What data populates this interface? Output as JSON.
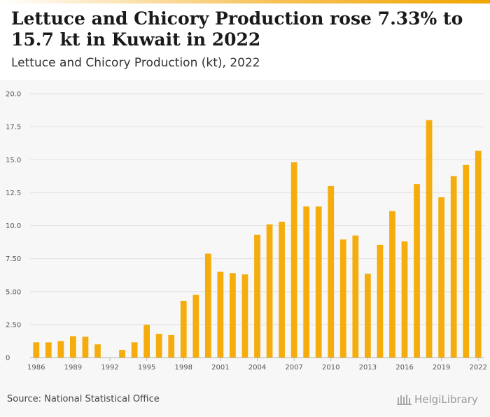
{
  "header": {
    "title": "Lettuce and Chicory Production rose 7.33% to 15.7 kt in Kuwait in 2022",
    "subtitle": "Lettuce and Chicory Production (kt), 2022"
  },
  "footer": {
    "source": "Source: National Statistical Office",
    "logo_text": "HelgiLibrary"
  },
  "colors": {
    "bar": "#f5ad0e",
    "grid": "#e2e2e2",
    "panel": "#f7f7f7"
  },
  "chart_data": {
    "type": "bar",
    "title": "Lettuce and Chicory Production (kt), 2022",
    "xlabel": "",
    "ylabel": "",
    "ylim": [
      0,
      20
    ],
    "yticks": [
      "0",
      "2.50",
      "5.00",
      "7.50",
      "10.0",
      "12.5",
      "15.0",
      "17.5",
      "20.0"
    ],
    "xticks": [
      "1986",
      "1989",
      "1992",
      "1995",
      "1998",
      "2001",
      "2004",
      "2007",
      "2010",
      "2013",
      "2016",
      "2019",
      "2022"
    ],
    "grid": true,
    "categories": [
      "1986",
      "1987",
      "1988",
      "1989",
      "1990",
      "1991",
      "1992",
      "1993",
      "1994",
      "1995",
      "1996",
      "1997",
      "1998",
      "1999",
      "2000",
      "2001",
      "2002",
      "2003",
      "2004",
      "2005",
      "2006",
      "2007",
      "2008",
      "2009",
      "2010",
      "2011",
      "2012",
      "2013",
      "2014",
      "2015",
      "2016",
      "2017",
      "2018",
      "2019",
      "2020",
      "2021",
      "2022"
    ],
    "values": [
      1.15,
      1.15,
      1.25,
      1.62,
      1.58,
      1.0,
      0.0,
      0.58,
      1.15,
      2.48,
      1.8,
      1.7,
      4.3,
      4.75,
      7.88,
      6.5,
      6.4,
      6.3,
      9.3,
      10.1,
      10.3,
      14.8,
      11.45,
      11.45,
      13.0,
      8.95,
      9.25,
      6.35,
      8.55,
      11.1,
      8.8,
      13.15,
      18.0,
      12.15,
      13.75,
      14.6,
      15.67
    ]
  }
}
